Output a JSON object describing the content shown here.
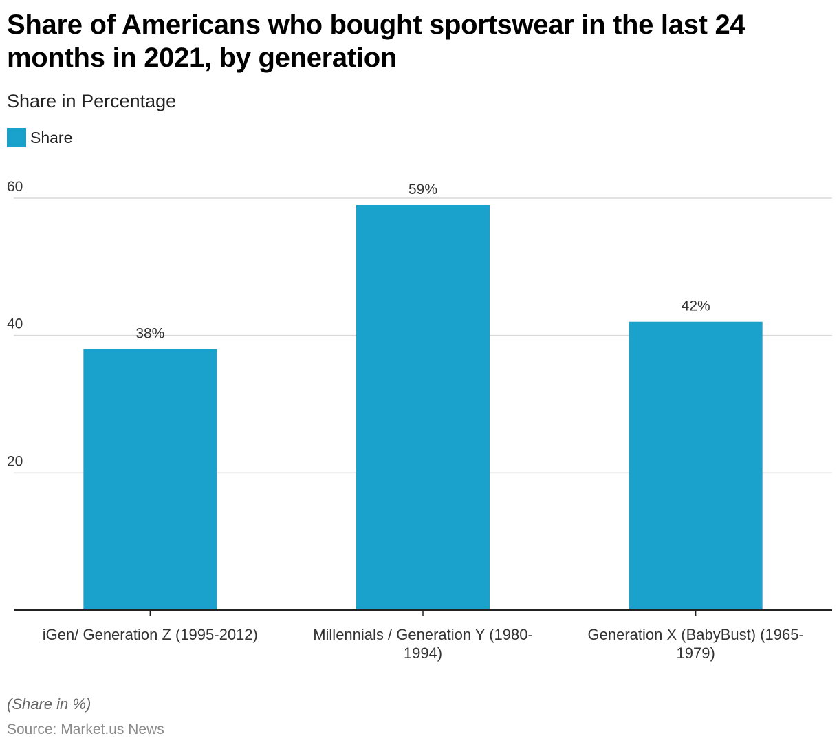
{
  "title": "Share of Americans who bought sportswear in the last 24 months in 2021, by generation",
  "subtitle": "Share in Percentage",
  "footnote": "(Share in %)",
  "source": "Source: Market.us News",
  "colors": {
    "bar": "#1aa1cc",
    "grid": "#d9d9d9",
    "axis": "#222222",
    "tick_text": "#333333"
  },
  "chart_data": {
    "type": "bar",
    "categories": [
      [
        "iGen/ Generation Z (1995-2012)"
      ],
      [
        "Millennials / Generation Y (1980-",
        "1994)"
      ],
      [
        "Generation X (BabyBust) (1965-",
        "1979)"
      ]
    ],
    "series": [
      {
        "name": "Share",
        "values": [
          38,
          59,
          42
        ],
        "data_labels": [
          "38%",
          "59%",
          "42%"
        ]
      }
    ],
    "ylim": [
      0,
      60
    ],
    "yticks": [
      20,
      40,
      60
    ],
    "ytick_labels": [
      "20",
      "40",
      "60"
    ],
    "grid": true,
    "legend": "top-left"
  }
}
